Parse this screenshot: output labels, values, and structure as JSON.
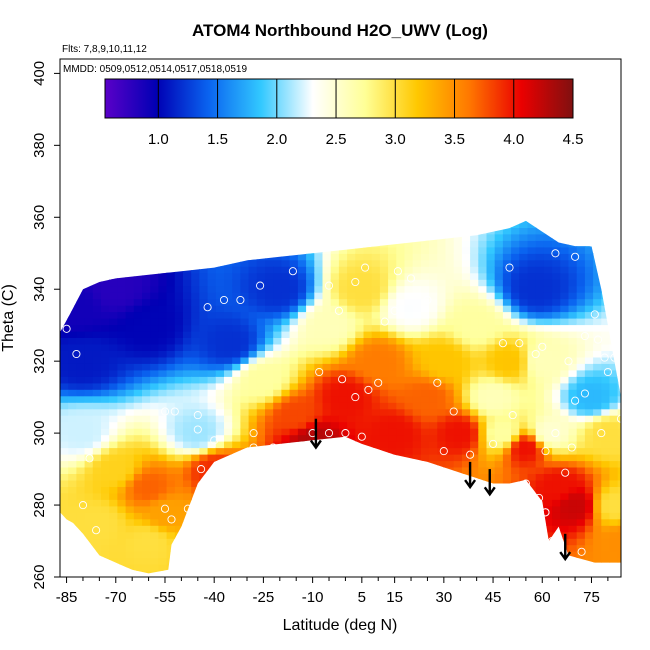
{
  "chart_data": {
    "type": "heatmap",
    "title": "ATOM4 Northbound H2O_UWV (Log)",
    "flights_note": "Flts: 7,8,9,10,11,12",
    "dates_note": "MMDD: 0509,0512,0514,0517,0518,0519",
    "xlabel": "Latitude (deg N)",
    "ylabel": "Theta (C)",
    "xlim": [
      -87,
      84
    ],
    "ylim": [
      260,
      404
    ],
    "x_ticks": [
      -85,
      -70,
      -55,
      -40,
      -25,
      -10,
      5,
      15,
      30,
      45,
      60,
      75
    ],
    "x_ticks_minor": [
      -80,
      -75,
      -65,
      -60,
      -50,
      -45,
      -35,
      -30,
      -20,
      -15,
      -5,
      0,
      10,
      20,
      25,
      35,
      40,
      50,
      55,
      65,
      70,
      80
    ],
    "y_ticks": [
      260,
      280,
      300,
      320,
      340,
      360,
      380,
      400
    ],
    "colorbar": {
      "range": [
        0.55,
        4.5
      ],
      "ticks": [
        1.0,
        1.5,
        2.0,
        2.5,
        3.0,
        3.5,
        4.0,
        4.5
      ],
      "colors": [
        "#5a00c8",
        "#0000b4",
        "#0a64f0",
        "#32c8ff",
        "#ffffff",
        "#ffff96",
        "#ffc800",
        "#ff7800",
        "#eb0000",
        "#801010"
      ]
    },
    "upper_boundary": [
      [
        -87,
        328
      ],
      [
        -84,
        333
      ],
      [
        -80,
        340
      ],
      [
        -75,
        342
      ],
      [
        -70,
        343
      ],
      [
        -60,
        344
      ],
      [
        -50,
        345
      ],
      [
        -40,
        346
      ],
      [
        -30,
        348
      ],
      [
        -20,
        349
      ],
      [
        -10,
        350
      ],
      [
        0,
        351
      ],
      [
        10,
        352
      ],
      [
        20,
        353
      ],
      [
        30,
        354
      ],
      [
        40,
        355
      ],
      [
        50,
        357
      ],
      [
        55,
        359
      ],
      [
        60,
        356
      ],
      [
        65,
        353
      ],
      [
        70,
        352
      ],
      [
        75,
        352
      ],
      [
        78,
        340
      ],
      [
        80,
        330
      ],
      [
        82,
        320
      ],
      [
        84,
        310
      ]
    ],
    "lower_boundary": [
      [
        -87,
        278
      ],
      [
        -85,
        276
      ],
      [
        -83,
        275
      ],
      [
        -80,
        272
      ],
      [
        -75,
        266
      ],
      [
        -70,
        264
      ],
      [
        -65,
        262
      ],
      [
        -60,
        261
      ],
      [
        -54,
        262
      ],
      [
        -53,
        269
      ],
      [
        -50,
        274
      ],
      [
        -45,
        286
      ],
      [
        -40,
        292
      ],
      [
        -30,
        296
      ],
      [
        -20,
        297
      ],
      [
        -10,
        298
      ],
      [
        0,
        299
      ],
      [
        5,
        297
      ],
      [
        15,
        294
      ],
      [
        25,
        292
      ],
      [
        35,
        289
      ],
      [
        45,
        286
      ],
      [
        50,
        286
      ],
      [
        55,
        287
      ],
      [
        60,
        281
      ],
      [
        62,
        270
      ],
      [
        65,
        274
      ],
      [
        68,
        266
      ],
      [
        72,
        265
      ],
      [
        76,
        264
      ],
      [
        80,
        264
      ],
      [
        84,
        264
      ]
    ],
    "control_points": [
      [
        -82,
        335,
        0.9
      ],
      [
        -80,
        320,
        1.1
      ],
      [
        -70,
        340,
        0.8
      ],
      [
        -60,
        330,
        1.0
      ],
      [
        -80,
        300,
        2.2
      ],
      [
        -70,
        290,
        3.1
      ],
      [
        -60,
        285,
        3.7
      ],
      [
        -55,
        278,
        3.4
      ],
      [
        -45,
        300,
        2.1
      ],
      [
        -40,
        290,
        3.9
      ],
      [
        -35,
        325,
        1.2
      ],
      [
        -25,
        315,
        2.7
      ],
      [
        -20,
        340,
        1.2
      ],
      [
        -15,
        305,
        3.8
      ],
      [
        -10,
        298,
        4.3
      ],
      [
        -5,
        330,
        2.6
      ],
      [
        0,
        310,
        4.0
      ],
      [
        5,
        340,
        3.0
      ],
      [
        10,
        320,
        3.6
      ],
      [
        15,
        300,
        4.0
      ],
      [
        20,
        335,
        2.3
      ],
      [
        25,
        310,
        3.7
      ],
      [
        30,
        320,
        3.2
      ],
      [
        35,
        300,
        4.0
      ],
      [
        40,
        330,
        2.7
      ],
      [
        45,
        310,
        2.6
      ],
      [
        48,
        300,
        2.7
      ],
      [
        50,
        320,
        3.2
      ],
      [
        55,
        296,
        4.0
      ],
      [
        58,
        340,
        1.2
      ],
      [
        60,
        320,
        2.6
      ],
      [
        62,
        300,
        2.5
      ],
      [
        65,
        285,
        4.0
      ],
      [
        70,
        280,
        4.2
      ],
      [
        75,
        310,
        1.8
      ],
      [
        80,
        300,
        3.0
      ],
      [
        82,
        280,
        3.0
      ],
      [
        85,
        270,
        3.5
      ],
      [
        -85,
        270,
        3.0
      ],
      [
        -75,
        275,
        3.0
      ],
      [
        -60,
        270,
        3.0
      ]
    ],
    "sample_points": [
      [
        -85,
        329
      ],
      [
        -82,
        322
      ],
      [
        -78,
        293
      ],
      [
        -80,
        280
      ],
      [
        -76,
        273
      ],
      [
        -55,
        279
      ],
      [
        -53,
        276
      ],
      [
        -48,
        279
      ],
      [
        -55,
        306
      ],
      [
        -52,
        306
      ],
      [
        -45,
        305
      ],
      [
        -45,
        301
      ],
      [
        -44,
        290
      ],
      [
        -40,
        298
      ],
      [
        -42,
        335
      ],
      [
        -37,
        337
      ],
      [
        -32,
        337
      ],
      [
        -28,
        300
      ],
      [
        -28,
        296
      ],
      [
        -22,
        296
      ],
      [
        -26,
        341
      ],
      [
        -16,
        345
      ],
      [
        -5,
        341
      ],
      [
        -2,
        334
      ],
      [
        3,
        342
      ],
      [
        6,
        346
      ],
      [
        -10,
        300
      ],
      [
        -5,
        300
      ],
      [
        0,
        300
      ],
      [
        5,
        299
      ],
      [
        -8,
        317
      ],
      [
        -1,
        315
      ],
      [
        3,
        310
      ],
      [
        7,
        312
      ],
      [
        10,
        314
      ],
      [
        12,
        331
      ],
      [
        15,
        334
      ],
      [
        16,
        345
      ],
      [
        20,
        343
      ],
      [
        25,
        337
      ],
      [
        28,
        314
      ],
      [
        30,
        295
      ],
      [
        33,
        306
      ],
      [
        38,
        294
      ],
      [
        40,
        283
      ],
      [
        45,
        283
      ],
      [
        48,
        325
      ],
      [
        53,
        325
      ],
      [
        58,
        322
      ],
      [
        50,
        346
      ],
      [
        45,
        297
      ],
      [
        51,
        305
      ],
      [
        55,
        286
      ],
      [
        59,
        282
      ],
      [
        61,
        278
      ],
      [
        63,
        270
      ],
      [
        65,
        265
      ],
      [
        68,
        320
      ],
      [
        70,
        309
      ],
      [
        73,
        311
      ],
      [
        60,
        324
      ],
      [
        64,
        350
      ],
      [
        70,
        349
      ],
      [
        75,
        353
      ],
      [
        76,
        333
      ],
      [
        77,
        326
      ],
      [
        79,
        321
      ],
      [
        82,
        321
      ],
      [
        80,
        317
      ],
      [
        84,
        304
      ],
      [
        73,
        327
      ],
      [
        61,
        278
      ],
      [
        61,
        295
      ],
      [
        64,
        300
      ],
      [
        67,
        289
      ],
      [
        69,
        296
      ],
      [
        72,
        267
      ],
      [
        78,
        300
      ]
    ],
    "arrows": [
      [
        -9,
        304,
        296
      ],
      [
        38,
        292,
        285
      ],
      [
        44,
        290,
        283
      ],
      [
        67,
        272,
        265
      ]
    ]
  }
}
